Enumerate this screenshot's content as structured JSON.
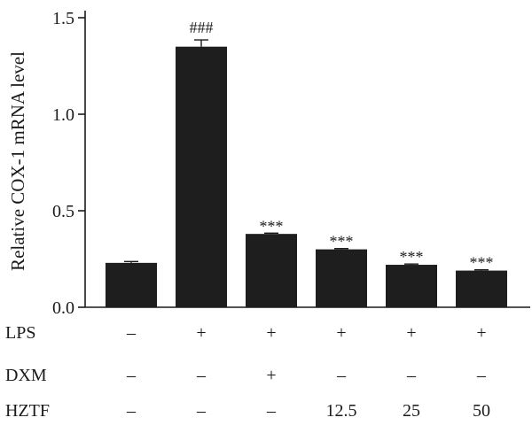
{
  "chart_data": {
    "type": "bar",
    "title": "",
    "xlabel": "",
    "ylabel": "Relative COX-1 mRNA level",
    "ylim": [
      0,
      1.5
    ],
    "yticks": [
      "0.0",
      "0.5",
      "1.0",
      "1.5"
    ],
    "ytick_values": [
      0,
      0.5,
      1.0,
      1.5
    ],
    "grid": false,
    "bar_color": "#1e1e1e",
    "categories": [
      "1",
      "2",
      "3",
      "4",
      "5",
      "6"
    ],
    "values": [
      0.23,
      1.35,
      0.38,
      0.3,
      0.22,
      0.19
    ],
    "errors": [
      0.007,
      0.035,
      0.004,
      0.004,
      0.004,
      0.004
    ],
    "annotations": [
      "",
      "###",
      "***",
      "***",
      "***",
      "***"
    ],
    "conditions": [
      {
        "label": "LPS",
        "values": [
          "–",
          "+",
          "+",
          "+",
          "+",
          "+"
        ]
      },
      {
        "label": "DXM",
        "values": [
          "–",
          "–",
          "+",
          "–",
          "–",
          "–"
        ]
      },
      {
        "label": "HZTF",
        "values": [
          "–",
          "–",
          "–",
          "12.5",
          "25",
          "50"
        ]
      }
    ]
  }
}
